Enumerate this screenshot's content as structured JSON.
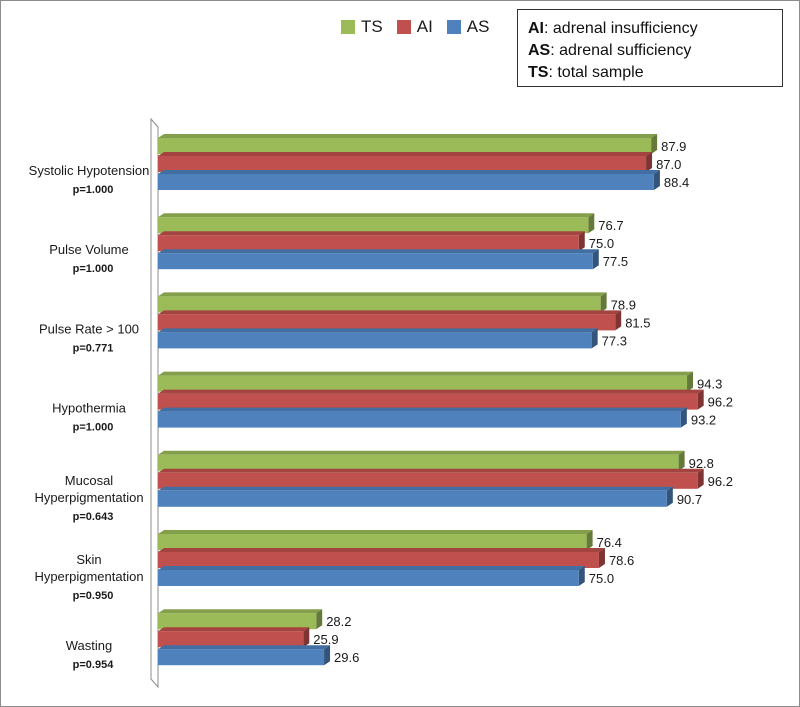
{
  "legend": [
    {
      "key": "ts",
      "label": "TS",
      "color": "#9bbb59"
    },
    {
      "key": "ai",
      "label": "AI",
      "color": "#c0504d"
    },
    {
      "key": "as",
      "label": "AS",
      "color": "#4f81bd"
    }
  ],
  "abbreviations": [
    {
      "abbr": "AI",
      "text": ": adrenal insufficiency"
    },
    {
      "abbr": "AS",
      "text": ": adrenal sufficiency"
    },
    {
      "abbr": "TS",
      "text": ": total sample"
    }
  ],
  "chart_data": {
    "type": "bar",
    "orientation": "horizontal",
    "categories": [
      {
        "label": [
          "Systolic Hypotension"
        ],
        "p": "p=1.000"
      },
      {
        "label": [
          "Pulse Volume"
        ],
        "p": "p=1.000"
      },
      {
        "label": [
          "Pulse Rate > 100"
        ],
        "p": "p=0.771"
      },
      {
        "label": [
          "Hypothermia"
        ],
        "p": "p=1.000"
      },
      {
        "label": [
          "Mucosal",
          "Hyperpigmentation"
        ],
        "p": "p=0.643"
      },
      {
        "label": [
          "Skin",
          "Hyperpigmentation"
        ],
        "p": "p=0.950"
      },
      {
        "label": [
          "Wasting"
        ],
        "p": "p=0.954"
      }
    ],
    "series": [
      {
        "name": "TS",
        "color": "#9bbb59",
        "values": [
          87.9,
          76.7,
          78.9,
          94.3,
          92.8,
          76.4,
          28.2
        ]
      },
      {
        "name": "AI",
        "color": "#c0504d",
        "values": [
          87.0,
          75.0,
          81.5,
          96.2,
          96.2,
          78.6,
          25.9
        ]
      },
      {
        "name": "AS",
        "color": "#4f81bd",
        "values": [
          88.4,
          77.5,
          77.3,
          93.2,
          90.7,
          75.0,
          29.6
        ]
      }
    ],
    "xlim": [
      0,
      100
    ],
    "grid": false,
    "legend_position": "top"
  }
}
